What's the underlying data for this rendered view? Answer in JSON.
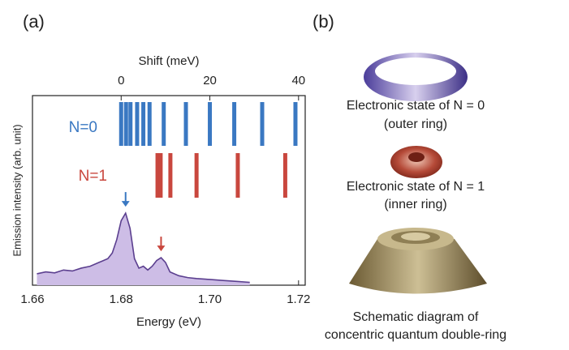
{
  "chart_data": {
    "type": "area",
    "panel_label": "(a)",
    "xlabel": "Energy (eV)",
    "ylabel": "Emission intensity (arb. unit)",
    "x2label": "Shift (meV)",
    "xlim": [
      1.66,
      1.7215
    ],
    "xticks": [
      {
        "value": 1.66,
        "label": "1.66"
      },
      {
        "value": 1.68,
        "label": "1.68"
      },
      {
        "value": 1.7,
        "label": "1.70"
      },
      {
        "value": 1.72,
        "label": "1.72"
      }
    ],
    "x2lim": [
      -20,
      41.5
    ],
    "x2ticks": [
      0,
      20,
      40
    ],
    "ylim": [
      0,
      1
    ],
    "x": [
      1.661,
      1.663,
      1.665,
      1.667,
      1.669,
      1.671,
      1.673,
      1.675,
      1.677,
      1.678,
      1.679,
      1.68,
      1.681,
      1.682,
      1.683,
      1.684,
      1.685,
      1.686,
      1.687,
      1.688,
      1.689,
      1.69,
      1.691,
      1.693,
      1.695,
      1.697,
      1.7,
      1.703,
      1.706,
      1.709
    ],
    "values": [
      0.06,
      0.07,
      0.065,
      0.08,
      0.075,
      0.09,
      0.1,
      0.12,
      0.14,
      0.17,
      0.24,
      0.34,
      0.38,
      0.3,
      0.14,
      0.09,
      0.1,
      0.08,
      0.1,
      0.13,
      0.145,
      0.12,
      0.07,
      0.05,
      0.04,
      0.035,
      0.03,
      0.025,
      0.02,
      0.015
    ],
    "color": "#5b3f8f",
    "transitions": [
      {
        "name": "N=0",
        "color": "#3a78c2",
        "shifts": [
          0,
          1.1,
          2.1,
          3.6,
          5,
          6.4,
          9.6,
          14.6,
          20,
          25.5,
          31.8,
          39.3
        ]
      },
      {
        "name": "N=1",
        "color": "#c9473e",
        "shifts": [
          8.2,
          8.9,
          11.1,
          17,
          26.3,
          37
        ]
      }
    ]
  },
  "panel_b": {
    "panel_label": "(b)",
    "captions": [
      [
        "Electronic state of N = 0",
        "(outer ring)"
      ],
      [
        "Electronic state of N = 1",
        "(inner ring)"
      ],
      [
        "Schematic diagram of",
        "concentric quantum double-ring"
      ]
    ]
  }
}
